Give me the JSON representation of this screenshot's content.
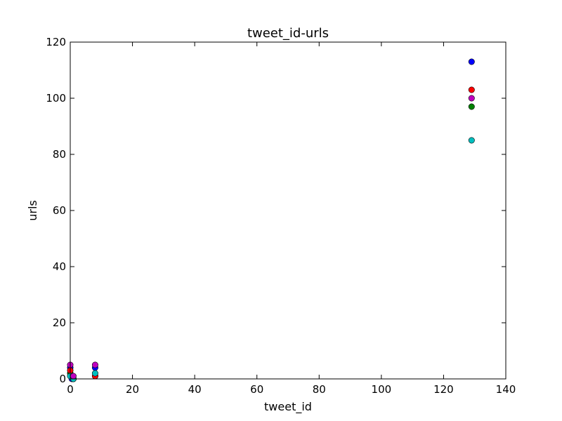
{
  "chart_data": {
    "type": "scatter",
    "title": "tweet_id-urls",
    "xlabel": "tweet_id",
    "ylabel": "urls",
    "xlim": [
      0,
      140
    ],
    "ylim": [
      0,
      120
    ],
    "xticks": [
      "0",
      "20",
      "40",
      "60",
      "80",
      "100",
      "120",
      "140"
    ],
    "yticks": [
      "0",
      "20",
      "40",
      "60",
      "80",
      "100",
      "120"
    ],
    "grid": false,
    "legend": "none",
    "series": [
      {
        "color": "#0000ff",
        "points": [
          [
            0,
            4
          ],
          [
            0.5,
            0
          ],
          [
            8,
            4
          ],
          [
            129,
            113
          ]
        ]
      },
      {
        "color": "#008000",
        "points": [
          [
            0,
            2
          ],
          [
            1,
            0
          ],
          [
            8,
            1
          ],
          [
            129,
            97
          ]
        ]
      },
      {
        "color": "#ff0000",
        "points": [
          [
            0,
            3
          ],
          [
            1,
            0
          ],
          [
            8,
            1
          ],
          [
            129,
            103
          ]
        ]
      },
      {
        "color": "#00bfbf",
        "points": [
          [
            0,
            1
          ],
          [
            1,
            0
          ],
          [
            8,
            2
          ],
          [
            129,
            85
          ]
        ]
      },
      {
        "color": "#bf00bf",
        "points": [
          [
            0,
            5
          ],
          [
            1,
            1
          ],
          [
            8,
            5
          ],
          [
            129,
            100
          ]
        ]
      }
    ]
  }
}
